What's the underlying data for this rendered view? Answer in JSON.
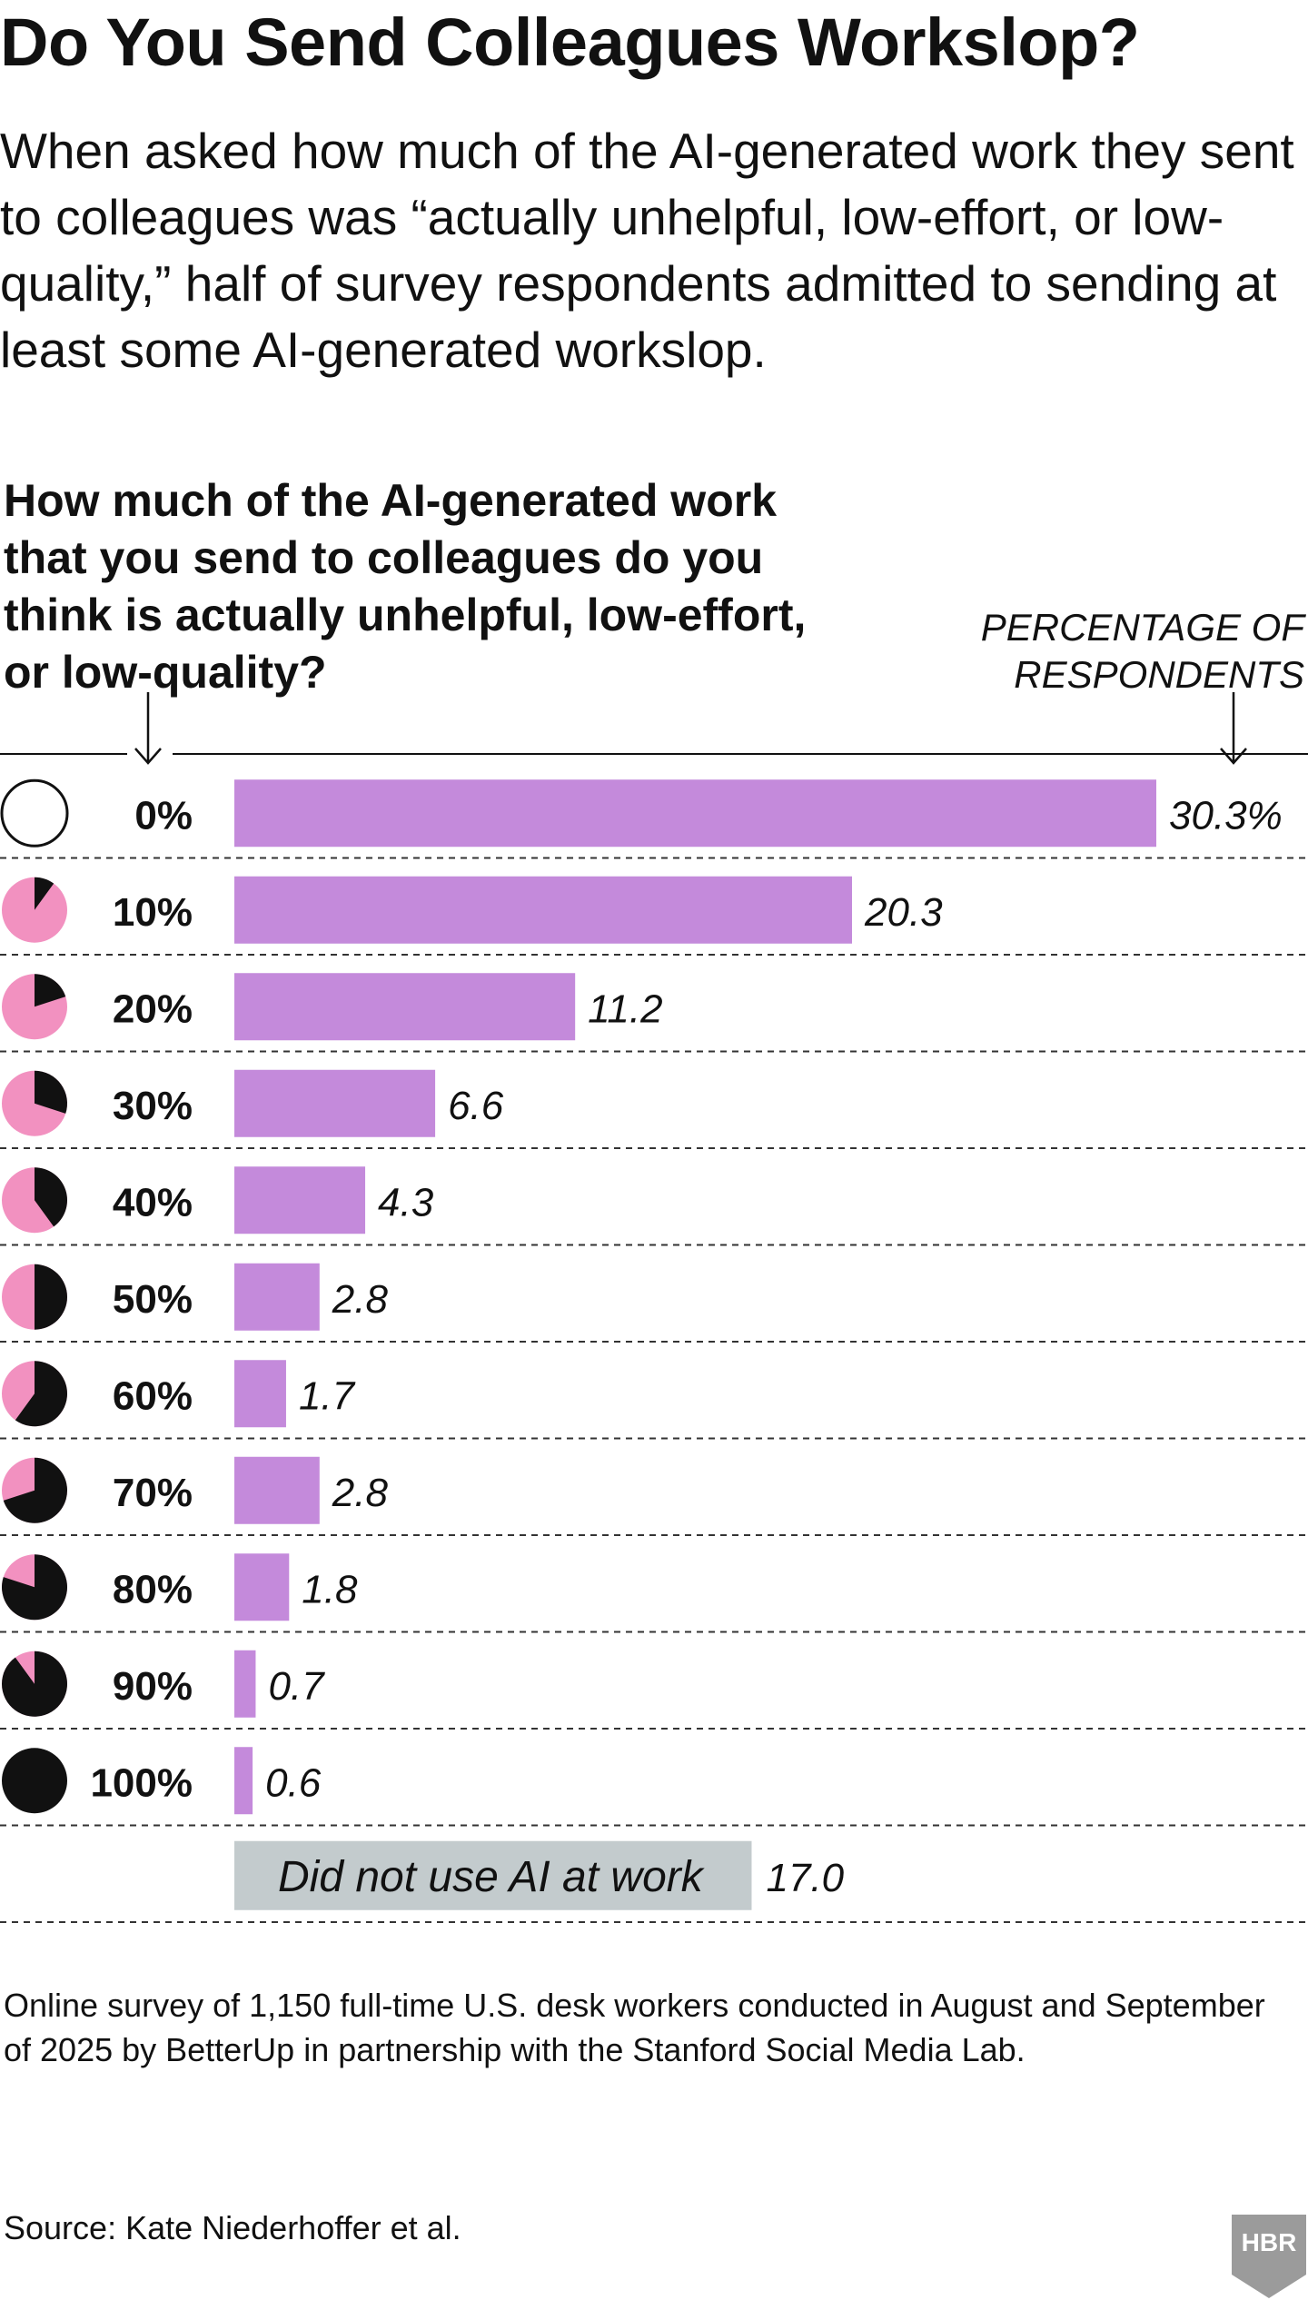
{
  "headline": "Do You Send Colleagues Workslop?",
  "dek": "When asked how much of the AI-generated work they sent to colleagues was “actually unhelpful, low-effort, or low-quality,” half of survey respondents admitted to sending at least some AI-generated workslop.",
  "question": "How much of the AI-generated work that you send to colleagues do you think is actually unhelpful, low-effort, or low-quality?",
  "unit_label_line1": "PERCENTAGE OF",
  "unit_label_line2": "RESPONDENTS",
  "note": "Online survey of 1,150 full-time U.S. desk workers conducted in August and September of 2025 by BetterUp in partnership with the Stanford Social Media Lab.",
  "source": "Source: Kate Niederhoffer et al.",
  "logo_text": "HBR",
  "colors": {
    "bar": "#c48adb",
    "bar_gray": "#c3cbcd",
    "pie_pink": "#f291c0",
    "pie_black": "#111111"
  },
  "chart_data": {
    "type": "bar",
    "orientation": "horizontal",
    "x_unit": "percentage of respondents",
    "categories": [
      "0%",
      "10%",
      "20%",
      "30%",
      "40%",
      "50%",
      "60%",
      "70%",
      "80%",
      "90%",
      "100%"
    ],
    "icon_fractions": [
      0,
      0.1,
      0.2,
      0.3,
      0.4,
      0.5,
      0.6,
      0.7,
      0.8,
      0.9,
      1.0
    ],
    "values": [
      30.3,
      20.3,
      11.2,
      6.6,
      4.3,
      2.8,
      1.7,
      2.8,
      1.8,
      0.7,
      0.6
    ],
    "value_labels": [
      "30.3%",
      "20.3",
      "11.2",
      "6.6",
      "4.3",
      "2.8",
      "1.7",
      "2.8",
      "1.8",
      "0.7",
      "0.6"
    ],
    "extra_bar": {
      "label": "Did not use AI at work",
      "value": 17.0,
      "value_label": "17.0"
    }
  }
}
